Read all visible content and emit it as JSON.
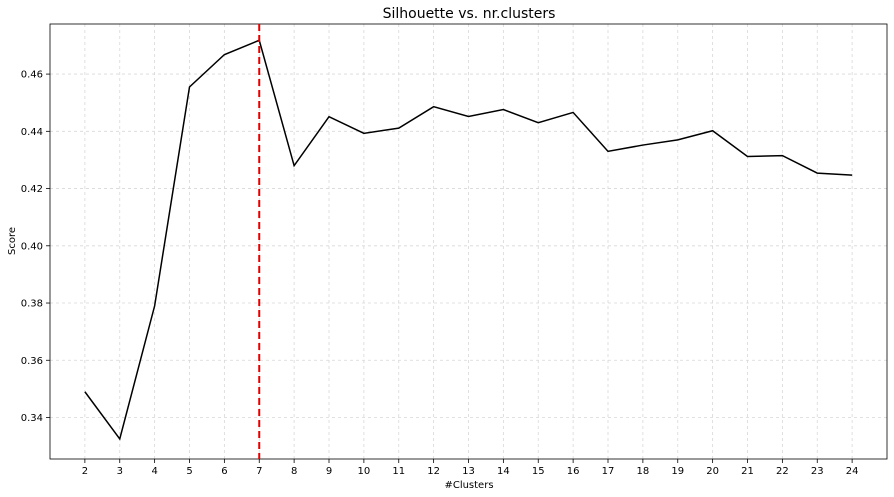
{
  "chart_data": {
    "type": "line",
    "title": "Silhouette vs. nr.clusters",
    "xlabel": "#Clusters",
    "ylabel": "Score",
    "x": [
      2,
      3,
      4,
      5,
      6,
      7,
      8,
      9,
      10,
      11,
      12,
      13,
      14,
      15,
      16,
      17,
      18,
      19,
      20,
      21,
      22,
      23,
      24
    ],
    "series": [
      {
        "values": [
          0.349,
          0.3325,
          0.379,
          0.4555,
          0.4668,
          0.4718,
          0.428,
          0.4451,
          0.4393,
          0.4411,
          0.4486,
          0.4452,
          0.4476,
          0.443,
          0.4466,
          0.433,
          0.4352,
          0.437,
          0.4402,
          0.4312,
          0.4315,
          0.4254,
          0.4247
        ],
        "color": "#000000"
      }
    ],
    "reference_line": {
      "x": 7,
      "color": "#e00000",
      "style": "dashed"
    },
    "xlim": [
      1,
      25
    ],
    "ylim": [
      0.3255,
      0.4775
    ],
    "xticks": [
      "2",
      "3",
      "4",
      "5",
      "6",
      "7",
      "8",
      "9",
      "10",
      "11",
      "12",
      "13",
      "14",
      "15",
      "16",
      "17",
      "18",
      "19",
      "20",
      "21",
      "22",
      "23",
      "24"
    ],
    "yticks": [
      "0.34",
      "0.36",
      "0.38",
      "0.40",
      "0.42",
      "0.44",
      "0.46"
    ],
    "grid": true
  }
}
